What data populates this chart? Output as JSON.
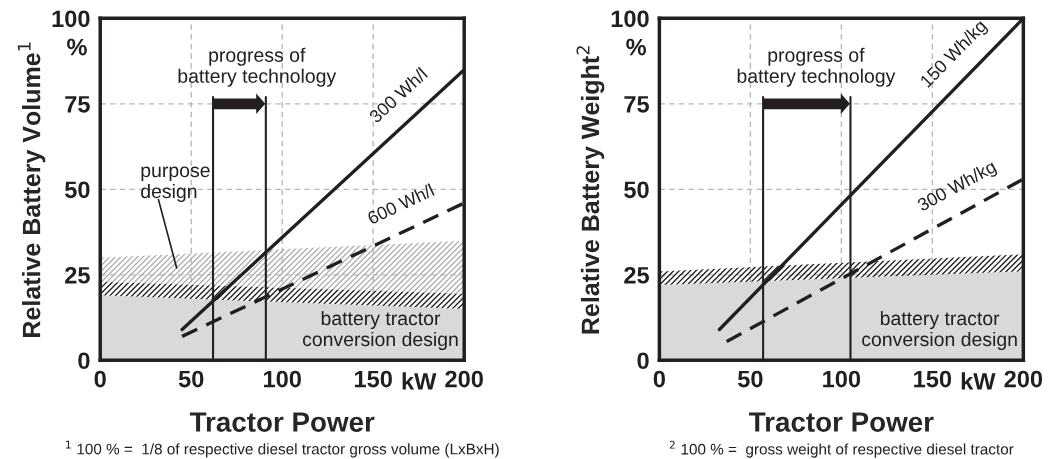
{
  "chart_data": [
    {
      "type": "line",
      "xlabel": "Tractor Power",
      "ylabel": "Relative Battery Volume$^{1}$",
      "xlim": [
        0,
        200
      ],
      "ylim": [
        0,
        100
      ],
      "xticks": [
        0,
        50,
        100,
        150,
        200
      ],
      "yticks": [
        0,
        25,
        50,
        75,
        100
      ],
      "grid": true,
      "legend": false,
      "stacked": true,
      "series": [
        {
          "type": "area",
          "name": "battery tractor\nconversion design",
          "color": "#d9d9db",
          "x": [
            0,
            200
          ],
          "values": [
            19,
            15
          ]
        },
        {
          "type": "area",
          "color": "#222222",
          "x": [
            0,
            200
          ],
          "values": [
            4,
            4.5
          ]
        },
        {
          "type": "area",
          "color": "#b0b0b0",
          "x": [
            0,
            200
          ],
          "values": [
            7,
            15.5
          ]
        },
        {
          "name": "300 Wh/l",
          "color": "#231f20",
          "line_style": "solid",
          "x": [
            45,
            200
          ],
          "values": [
            9,
            85
          ]
        },
        {
          "name": "600 Wh/l",
          "color": "#231f20",
          "line_style": "dashed",
          "x": [
            45,
            200
          ],
          "values": [
            7,
            46
          ]
        }
      ],
      "ref_lines": [
        {
          "axis": "x",
          "value": 62,
          "color": "#231f20"
        },
        {
          "axis": "x",
          "value": 91,
          "color": "#231f20"
        }
      ],
      "annotations": [
        "%",
        "kW",
        "progress of\nbattery technology",
        "$^{1}$ 100 % =  1/8 of respective diesel tractor gross volume (LxBxH)",
        "purpose\ndesign"
      ]
    },
    {
      "type": "line",
      "xlabel": "Tractor Power",
      "ylabel": "Relative Battery Weight$^{2}$",
      "xlim": [
        0,
        200
      ],
      "ylim": [
        0,
        100
      ],
      "xticks": [
        0,
        50,
        100,
        150,
        200
      ],
      "yticks": [
        0,
        25,
        50,
        75,
        100
      ],
      "grid": true,
      "legend": false,
      "stacked": true,
      "series": [
        {
          "type": "area",
          "name": "battery tractor\nconversion design",
          "color": "#d9d9db",
          "x": [
            0,
            200
          ],
          "values": [
            22,
            26
          ]
        },
        {
          "type": "area",
          "color": "#222222",
          "x": [
            0,
            200
          ],
          "values": [
            4,
            5
          ]
        },
        {
          "name": "150 Wh/kg",
          "color": "#231f20",
          "line_style": "solid",
          "x": [
            33,
            200
          ],
          "values": [
            9,
            100
          ]
        },
        {
          "name": "300 Wh/kg",
          "color": "#231f20",
          "line_style": "dashed",
          "x": [
            37,
            200
          ],
          "values": [
            5.5,
            53
          ]
        }
      ],
      "ref_lines": [
        {
          "axis": "x",
          "value": 57,
          "color": "#231f20"
        },
        {
          "axis": "x",
          "value": 105,
          "color": "#231f20"
        }
      ],
      "annotations": [
        "%",
        "kW",
        "progress of\nbattery technology",
        "$^{2}$ 100 % =  gross weight of respective diesel tractor"
      ]
    }
  ]
}
